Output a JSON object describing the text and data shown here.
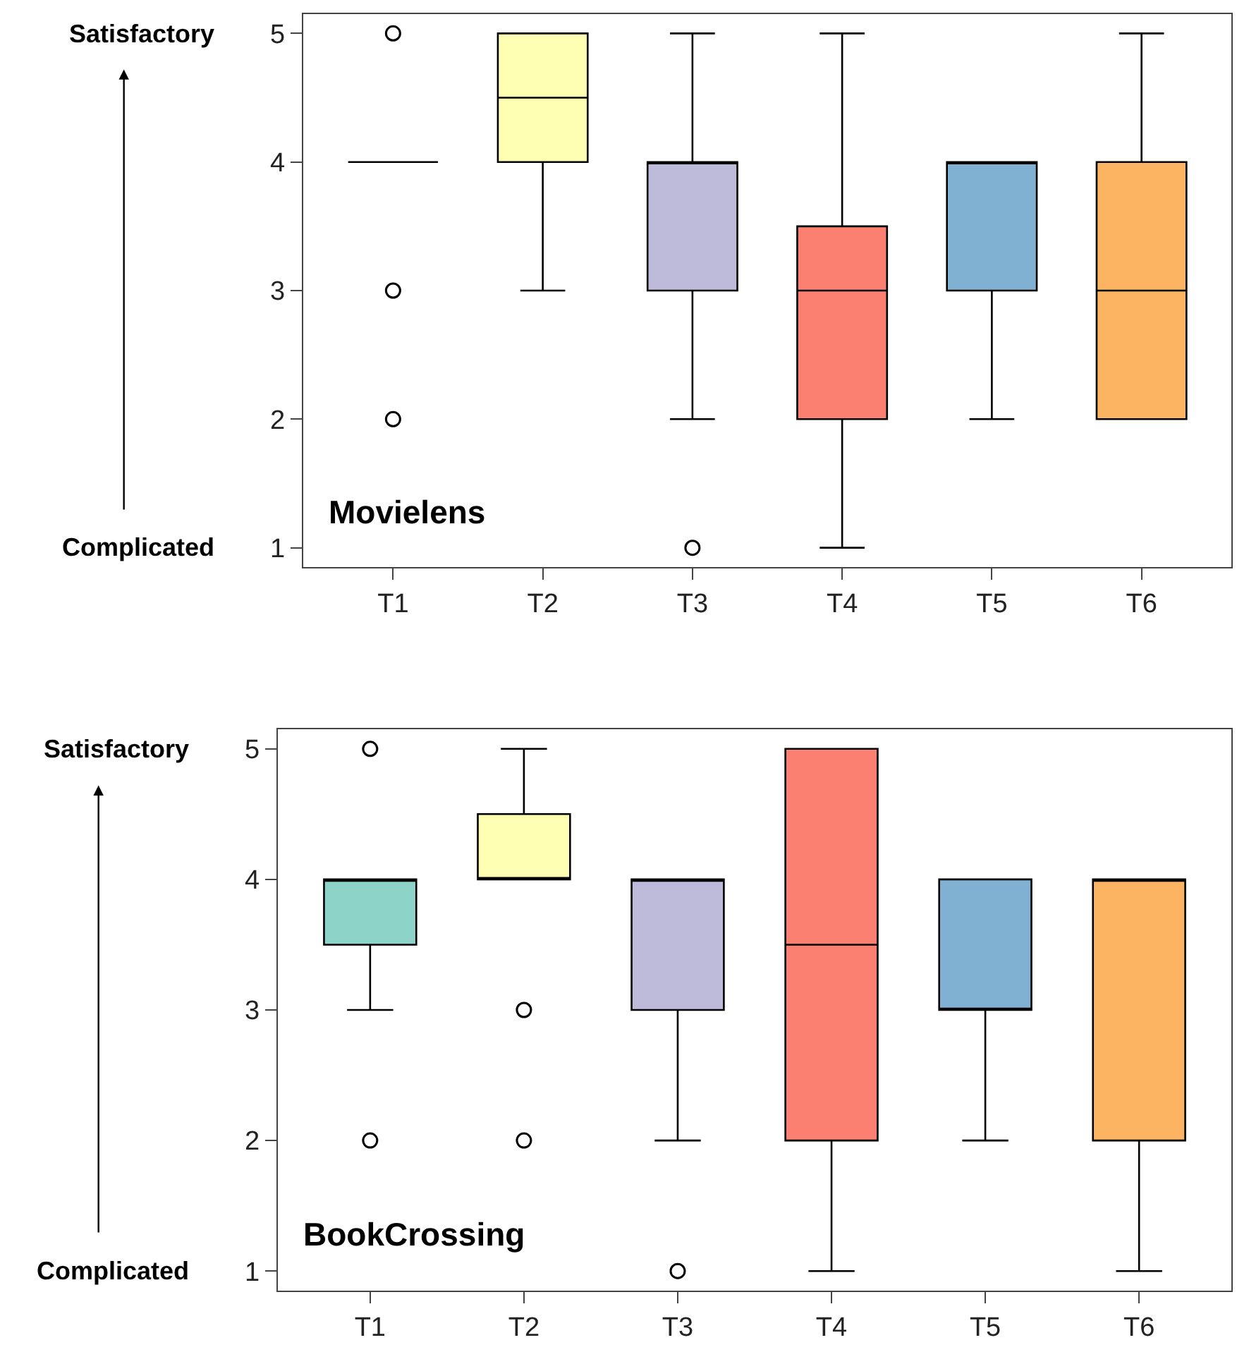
{
  "chart_data": [
    {
      "type": "box",
      "categories": [
        "T1",
        "T2",
        "T3",
        "T4",
        "T5",
        "T6"
      ],
      "colors": [
        null,
        "#ffffb3",
        "#bebada",
        "#fb8072",
        "#80b1d3",
        "#fdb462"
      ],
      "boxes": [
        {
          "low": 4,
          "q1": 4,
          "median": 4,
          "q3": 4,
          "high": 4,
          "outliers": [
            5,
            3,
            2
          ]
        },
        {
          "low": 3,
          "q1": 4,
          "median": 4.5,
          "q3": 5,
          "high": 5
        },
        {
          "low": 2,
          "q1": 3,
          "median": 4,
          "q3": 4,
          "high": 5,
          "outliers": [
            1
          ]
        },
        {
          "low": 1,
          "q1": 2,
          "median": 3,
          "q3": 3.5,
          "high": 5
        },
        {
          "low": 2,
          "q1": 3,
          "median": 4,
          "q3": 4,
          "high": 4
        },
        {
          "low": 2,
          "q1": 2,
          "median": 3,
          "q3": 4,
          "high": 5
        }
      ],
      "ylim": [
        0.85,
        5.15
      ],
      "yticks": [
        1,
        2,
        3,
        4,
        5
      ],
      "legend": false,
      "annotations": [
        "Satisfactory",
        "Complicated",
        "Movielens"
      ]
    },
    {
      "type": "box",
      "categories": [
        "T1",
        "T2",
        "T3",
        "T4",
        "T5",
        "T6"
      ],
      "colors": [
        "#8dd3c7",
        "#ffffb3",
        "#bebada",
        "#fb8072",
        "#80b1d3",
        "#fdb462"
      ],
      "boxes": [
        {
          "low": 3,
          "q1": 3.5,
          "median": 4,
          "q3": 4,
          "high": 4,
          "outliers": [
            5,
            2
          ]
        },
        {
          "low": 4,
          "q1": 4,
          "median": 4,
          "q3": 4.5,
          "high": 5,
          "outliers": [
            3,
            2
          ]
        },
        {
          "low": 2,
          "q1": 3,
          "median": 4,
          "q3": 4,
          "high": 4,
          "outliers": [
            1
          ]
        },
        {
          "low": 1,
          "q1": 2,
          "median": 3.5,
          "q3": 5,
          "high": 5
        },
        {
          "low": 2,
          "q1": 3,
          "median": 3,
          "q3": 4,
          "high": 4
        },
        {
          "low": 1,
          "q1": 2,
          "median": 4,
          "q3": 4,
          "high": 4
        }
      ],
      "ylim": [
        0.85,
        5.15
      ],
      "yticks": [
        1,
        2,
        3,
        4,
        5
      ],
      "legend": false,
      "annotations": [
        "Satisfactory",
        "Complicated",
        "BookCrossing"
      ]
    }
  ]
}
